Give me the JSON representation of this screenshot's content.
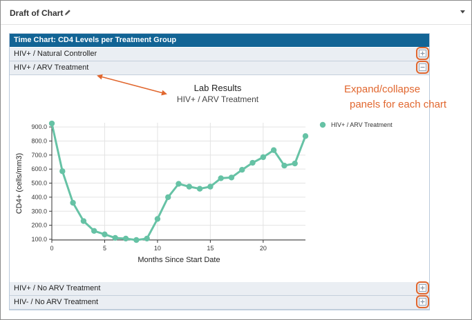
{
  "webpart": {
    "title": "Draft of Chart",
    "edit_icon": "pencil-icon",
    "menu_icon": "caret-down-icon"
  },
  "panel": {
    "title": "Time Chart: CD4 Levels per Treatment Group",
    "groups": [
      {
        "label": "HIV+ / Natural Controller",
        "state": "collapsed",
        "toggle": "+"
      },
      {
        "label": "HIV+ / ARV Treatment",
        "state": "expanded",
        "toggle": "−"
      },
      {
        "label": "HIV+ / No ARV Treatment",
        "state": "collapsed",
        "toggle": "+"
      },
      {
        "label": "HIV- / No ARV Treatment",
        "state": "collapsed",
        "toggle": "+"
      }
    ]
  },
  "annotations": {
    "line1": "Expand/collapse",
    "line2": "panels for each chart",
    "color": "#e1672f"
  },
  "chart_data": {
    "type": "line",
    "title": "Lab Results",
    "subtitle": "HIV+ / ARV Treatment",
    "xlabel": "Months Since Start Date",
    "ylabel": "CD4+ (cells/mm3)",
    "xlim": [
      0,
      24
    ],
    "ylim": [
      95,
      930
    ],
    "x_ticks": [
      0,
      5,
      10,
      15,
      20
    ],
    "y_ticks": [
      100.0,
      200.0,
      300.0,
      400.0,
      500.0,
      600.0,
      700.0,
      800.0,
      900.0
    ],
    "grid": true,
    "legend": "top-right",
    "series": [
      {
        "name": "HIV+ / ARV Treatment",
        "color": "#66c2a5",
        "x": [
          0,
          1,
          2,
          3,
          4,
          5,
          6,
          7,
          8,
          9,
          10,
          11,
          12,
          13,
          14,
          15,
          16,
          17,
          18,
          19,
          20,
          21,
          22,
          23,
          24
        ],
        "values": [
          925,
          585,
          360,
          230,
          160,
          135,
          110,
          105,
          95,
          105,
          245,
          400,
          495,
          475,
          460,
          475,
          535,
          540,
          595,
          645,
          685,
          735,
          625,
          640,
          835
        ]
      }
    ]
  }
}
